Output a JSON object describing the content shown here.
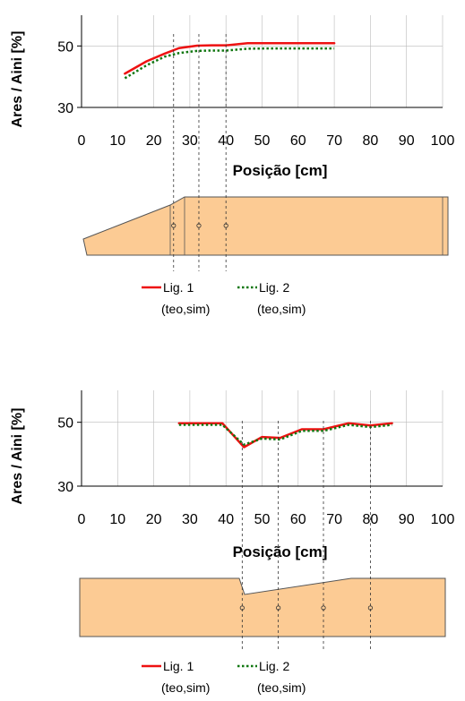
{
  "colors": {
    "series1": "#ee1111",
    "series2": "#117711",
    "shape_fill": "#fccb94",
    "shape_stroke": "#555555",
    "axis": "#000000",
    "grid": "#bbbbbb"
  },
  "chart_data": [
    {
      "type": "line",
      "xlabel": "Posição [cm]",
      "ylabel": "Ares / Aini [%]",
      "xlim": [
        0,
        100
      ],
      "ylim": [
        30,
        60
      ],
      "xticks": [
        0,
        10,
        20,
        30,
        40,
        50,
        60,
        70,
        80,
        90,
        100
      ],
      "yticks": [
        30,
        50
      ],
      "grid": true,
      "series": [
        {
          "name": "Lig. 1",
          "style": "solid",
          "x": [
            12,
            18,
            23,
            27,
            32,
            36,
            40,
            46,
            52,
            58,
            64,
            70
          ],
          "y": [
            41,
            45,
            47.5,
            49.3,
            50.1,
            50.2,
            50.2,
            50.9,
            50.9,
            50.9,
            50.9,
            50.9
          ]
        },
        {
          "name": "Lig. 2",
          "style": "dotted",
          "x": [
            12,
            18,
            23,
            27,
            32,
            36,
            40,
            46,
            52,
            58,
            64,
            70
          ],
          "y": [
            39.5,
            43.7,
            46.5,
            47.7,
            48.4,
            48.5,
            48.5,
            49.1,
            49.2,
            49.2,
            49.2,
            49.2
          ]
        }
      ],
      "markers_x": [
        25.5,
        32.5,
        40
      ],
      "legend": [
        {
          "label": "Lig. 1",
          "sub": "(teo,sim)"
        },
        {
          "label": "Lig. 2",
          "sub": "(teo,sim)"
        }
      ]
    },
    {
      "type": "line",
      "xlabel": "Posição [cm]",
      "ylabel": "Ares / Aini [%]",
      "xlim": [
        0,
        100
      ],
      "ylim": [
        30,
        60
      ],
      "xticks": [
        0,
        10,
        20,
        30,
        40,
        50,
        60,
        70,
        80,
        90,
        100
      ],
      "yticks": [
        30,
        50
      ],
      "grid": true,
      "series": [
        {
          "name": "Lig. 1",
          "style": "solid",
          "x": [
            27,
            33,
            39,
            45,
            50,
            55,
            61,
            67,
            74,
            80,
            86
          ],
          "y": [
            49.7,
            49.7,
            49.7,
            42.2,
            45.4,
            45.1,
            47.8,
            47.8,
            49.7,
            49,
            49.7
          ]
        },
        {
          "name": "Lig. 2",
          "style": "dotted",
          "x": [
            27,
            33,
            39,
            45,
            50,
            55,
            61,
            67,
            74,
            80,
            86
          ],
          "y": [
            49.2,
            49.2,
            49.2,
            43,
            44.9,
            44.6,
            47.3,
            47.3,
            49.2,
            48.5,
            49.2
          ]
        }
      ],
      "markers_x": [
        44.5,
        54.5,
        67,
        80
      ],
      "legend": [
        {
          "label": "Lig. 1",
          "sub": "(teo,sim)"
        },
        {
          "label": "Lig. 2",
          "sub": "(teo,sim)"
        }
      ]
    }
  ]
}
